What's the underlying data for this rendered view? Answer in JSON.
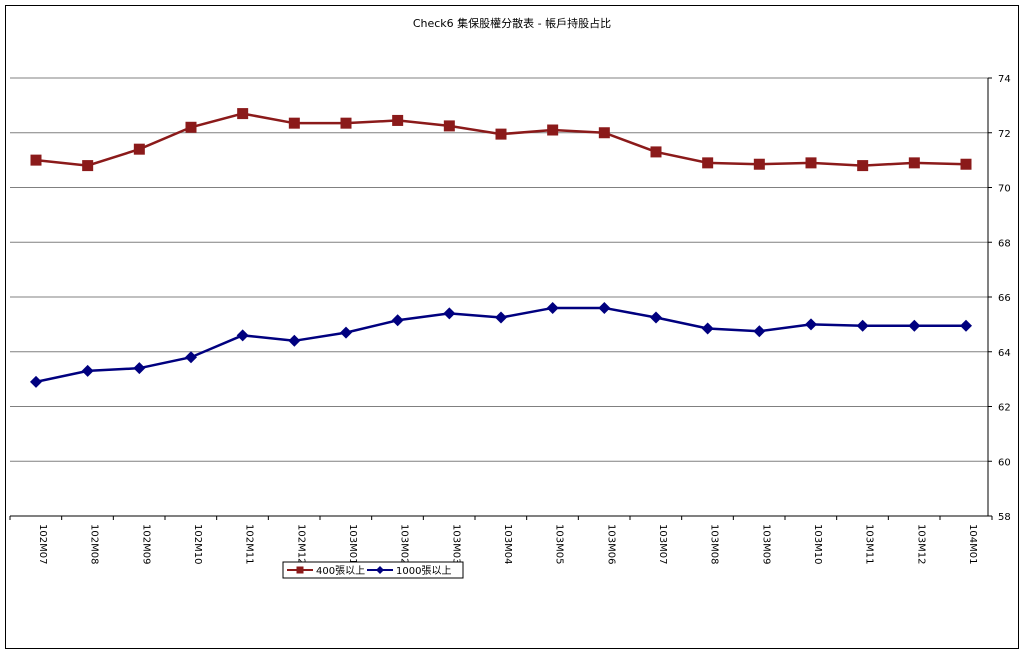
{
  "chart_data": {
    "type": "line",
    "title": "Check6 集保股權分散表 - 帳戶持股占比",
    "categories": [
      "102M07",
      "102M08",
      "102M09",
      "102M10",
      "102M11",
      "102M12",
      "103M01",
      "103M02",
      "103M03",
      "103M04",
      "103M05",
      "103M06",
      "103M07",
      "103M08",
      "103M09",
      "103M10",
      "103M11",
      "103M12",
      "104M01"
    ],
    "series": [
      {
        "name": "400張以上",
        "color": "#8B1A1A",
        "marker": "square",
        "values": [
          71.0,
          70.8,
          71.4,
          72.2,
          72.7,
          72.35,
          72.35,
          72.45,
          72.25,
          71.95,
          72.1,
          72.0,
          71.3,
          70.9,
          70.85,
          70.9,
          70.8,
          70.9,
          70.85
        ]
      },
      {
        "name": "1000張以上",
        "color": "#00007F",
        "marker": "diamond",
        "values": [
          62.9,
          63.3,
          63.4,
          63.8,
          64.6,
          64.4,
          64.7,
          65.15,
          65.4,
          65.25,
          65.6,
          65.6,
          65.25,
          64.85,
          64.75,
          65.0,
          64.95,
          64.95,
          64.95
        ]
      }
    ],
    "ylim": [
      58,
      74
    ],
    "yticks": [
      "58",
      "60",
      "62",
      "64",
      "66",
      "68",
      "70",
      "72",
      "74"
    ],
    "y_axis_side": "right",
    "grid": true,
    "legend_position": "bottom-left"
  }
}
